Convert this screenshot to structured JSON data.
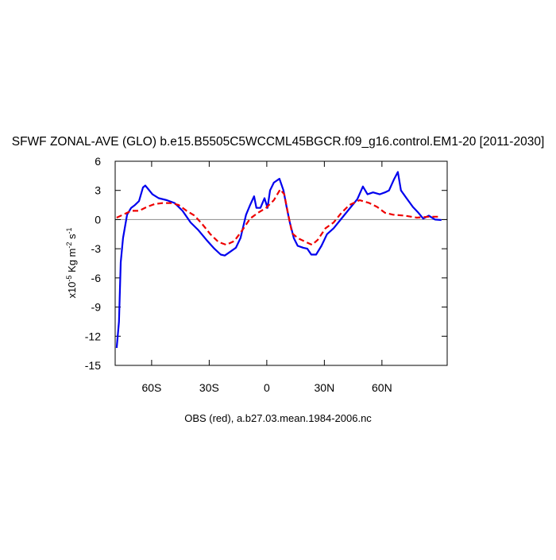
{
  "chart_data": {
    "type": "line",
    "title": "SFWF ZONAL-AVE (GLO) b.e15.B5505C5WCCML45BGCR.f09_g16.control.EM1-20 [2011-2030]",
    "xlabel": "OBS (red), a.b27.03.mean.1984-2006.nc",
    "ylabel_parts": [
      "x10",
      "-5",
      " Kg m",
      "-2",
      " s",
      "-1"
    ],
    "xlim": [
      -79,
      94
    ],
    "ylim": [
      -15,
      6
    ],
    "xticks": [
      {
        "value": -60,
        "label": "60S"
      },
      {
        "value": -30,
        "label": "30S"
      },
      0,
      {
        "value": 30,
        "label": "30N"
      },
      {
        "value": 60,
        "label": "60N"
      }
    ],
    "yticks": [
      -15,
      -12,
      -9,
      -6,
      -3,
      0,
      3,
      6
    ],
    "zero_line": true,
    "series": [
      {
        "color": "#0000ee",
        "dash": false,
        "x": [
          -78.2,
          -77,
          -76.1,
          -74.9,
          -72.8,
          -70.7,
          -68.7,
          -66.6,
          -64.5,
          -63.3,
          -61.6,
          -59.6,
          -56.3,
          -52.1,
          -48,
          -43.9,
          -39.7,
          -35.6,
          -31.4,
          -27.3,
          -24,
          -21.9,
          -19,
          -16.1,
          -13.7,
          -10.8,
          -8.7,
          -6.6,
          -5.4,
          -3.3,
          -1.2,
          0.4,
          1.7,
          3.7,
          6.6,
          8.7,
          10.3,
          12,
          14.1,
          16.1,
          19,
          21.1,
          23.2,
          25.7,
          28.5,
          31.4,
          34.8,
          38.9,
          43,
          47.2,
          50.1,
          52.5,
          55.4,
          58.8,
          61.6,
          63.7,
          66.2,
          68.3,
          69.9,
          72.8,
          76.1,
          79,
          81.5,
          84.4,
          87.7,
          91
        ],
        "values": [
          -13.2,
          -10.5,
          -4.4,
          -1.9,
          0.5,
          1.2,
          1.5,
          1.9,
          3.3,
          3.5,
          3.1,
          2.6,
          2.2,
          2.0,
          1.7,
          0.9,
          -0.3,
          -1.1,
          -2.1,
          -3.0,
          -3.6,
          -3.7,
          -3.3,
          -2.9,
          -1.9,
          0.5,
          1.5,
          2.4,
          1.2,
          1.2,
          2.2,
          1.2,
          3.0,
          3.8,
          4.2,
          3.0,
          1.3,
          -0.3,
          -1.9,
          -2.7,
          -2.9,
          -3.0,
          -3.6,
          -3.6,
          -2.7,
          -1.5,
          -0.9,
          0.1,
          1.1,
          2.1,
          3.4,
          2.6,
          2.8,
          2.6,
          2.8,
          3.0,
          4.1,
          4.9,
          3.0,
          2.2,
          1.3,
          0.7,
          0.1,
          0.4,
          0,
          -0.05
        ]
      },
      {
        "color": "#ee0000",
        "dash": true,
        "x": [
          -78.2,
          -74.9,
          -70.7,
          -66.6,
          -62.5,
          -58.3,
          -54.2,
          -50.1,
          -45.9,
          -41.8,
          -37.6,
          -33.5,
          -29.4,
          -25.2,
          -21.1,
          -16.9,
          -12.8,
          -8.7,
          -4.6,
          -0.4,
          3.7,
          7,
          9.1,
          11.2,
          13.2,
          16.1,
          20.3,
          23.6,
          26.5,
          30.6,
          34.8,
          38.9,
          43,
          48.4,
          53.4,
          57.5,
          61.6,
          65.8,
          72,
          78.2,
          84.4,
          90.6
        ],
        "values": [
          0.2,
          0.5,
          0.9,
          0.9,
          1.3,
          1.6,
          1.7,
          1.7,
          1.5,
          0.9,
          0.4,
          -0.5,
          -1.5,
          -2.3,
          -2.6,
          -2.2,
          -1.1,
          0.1,
          0.7,
          1.2,
          2.0,
          3.1,
          2.6,
          0.5,
          -1.4,
          -1.9,
          -2.3,
          -2.6,
          -2.1,
          -0.9,
          -0.3,
          0.7,
          1.5,
          2.0,
          1.7,
          1.3,
          0.7,
          0.5,
          0.4,
          0.2,
          0.3,
          0.3
        ]
      }
    ]
  }
}
